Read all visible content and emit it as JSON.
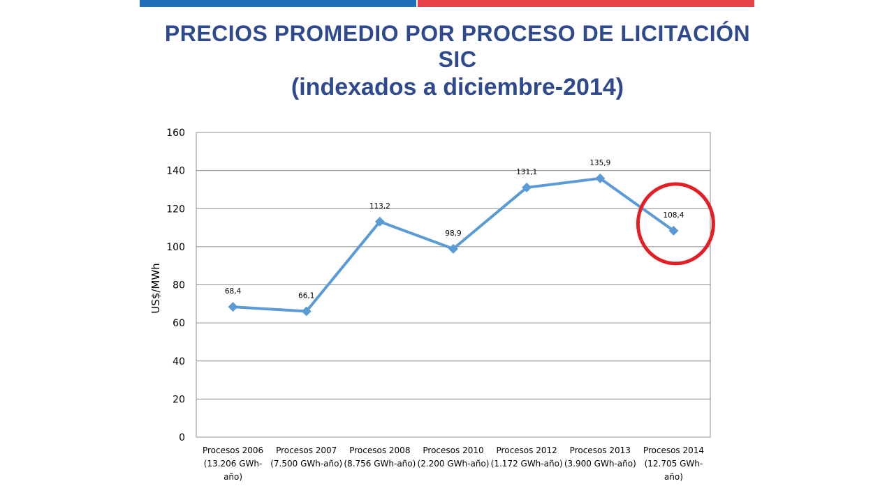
{
  "header": {
    "title_line1": "PRECIOS PROMEDIO POR PROCESO DE LICITACIÓN",
    "title_line2": "SIC",
    "title_line3": "(indexados a diciembre-2014)"
  },
  "colors": {
    "title": "#2f4a8c",
    "topbar_blue": "#1f6fb8",
    "topbar_red": "#e8434a",
    "series": "#5b9bd5",
    "highlight_circle": "#e21f26",
    "gridline": "#8c8c8c"
  },
  "chart_data": {
    "type": "line",
    "categories": [
      [
        "Procesos 2006",
        "(13.206 GWh-",
        "año)"
      ],
      [
        "Procesos 2007",
        "(7.500 GWh-año)"
      ],
      [
        "Procesos 2008",
        "(8.756 GWh-año)"
      ],
      [
        "Procesos 2010",
        "(2.200 GWh-año)"
      ],
      [
        "Procesos 2012",
        "(1.172 GWh-año)"
      ],
      [
        "Procesos 2013",
        "(3.900 GWh-año)"
      ],
      [
        "Procesos 2014",
        "(12.705 GWh-",
        "año)"
      ]
    ],
    "values": [
      68.4,
      66.1,
      113.2,
      98.9,
      131.1,
      135.9,
      108.4
    ],
    "data_labels": [
      "68,4",
      "66,1",
      "113,2",
      "98,9",
      "131,1",
      "135,9",
      "108,4"
    ],
    "ylabel": "US$/MWh",
    "ylim": [
      0,
      160
    ],
    "yticks": [
      "0",
      "20",
      "40",
      "60",
      "80",
      "100",
      "120",
      "140",
      "160"
    ],
    "grid": true,
    "legend": "none",
    "highlighted_category_index": 6
  }
}
